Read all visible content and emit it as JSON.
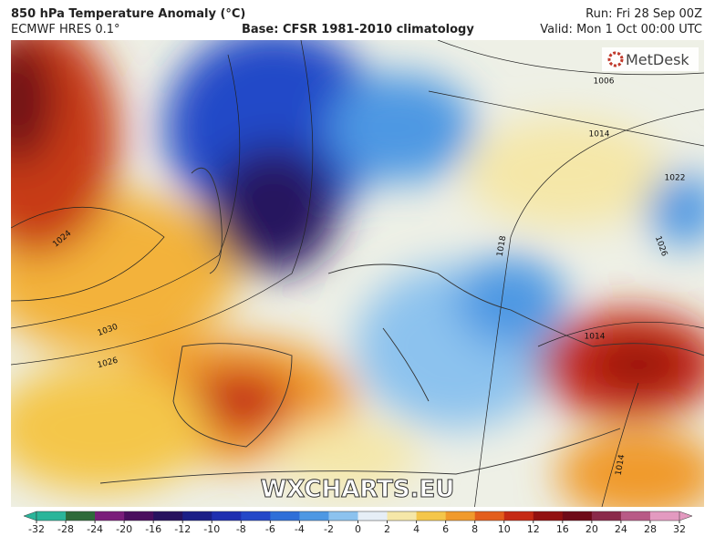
{
  "header": {
    "title": "850 hPa Temperature Anomaly (°C)",
    "model": "ECMWF HRES 0.1°",
    "base": "Base: CFSR 1981-2010 climatology",
    "run": "Run: Fri 28 Sep 00Z",
    "valid": "Valid: Mon 1 Oct 00:00 UTC"
  },
  "logo": "MetDesk",
  "watermark": "WXCHARTS.EU",
  "isobar_labels": [
    "1006",
    "1014",
    "1022",
    "1026",
    "1024",
    "1030",
    "1026",
    "1018",
    "1014",
    "1014"
  ],
  "colorbar": {
    "ticks": [
      -32,
      -28,
      -24,
      -20,
      -16,
      -12,
      -10,
      -8,
      -6,
      -4,
      -2,
      0,
      2,
      4,
      6,
      8,
      10,
      12,
      16,
      20,
      24,
      28,
      32
    ],
    "colors": [
      "#2ab59a",
      "#2e6a3a",
      "#7a1d7a",
      "#4a0e5e",
      "#27125e",
      "#1b1f86",
      "#1f2fb0",
      "#2448c8",
      "#2f6fd8",
      "#4e98e3",
      "#8cc2ee",
      "#e6eef6",
      "#f5e7a8",
      "#f4c64a",
      "#f09a2c",
      "#e35e1c",
      "#c52a14",
      "#921010",
      "#6e0a18",
      "#8a2a4a",
      "#b85a86",
      "#e39ac0"
    ]
  }
}
